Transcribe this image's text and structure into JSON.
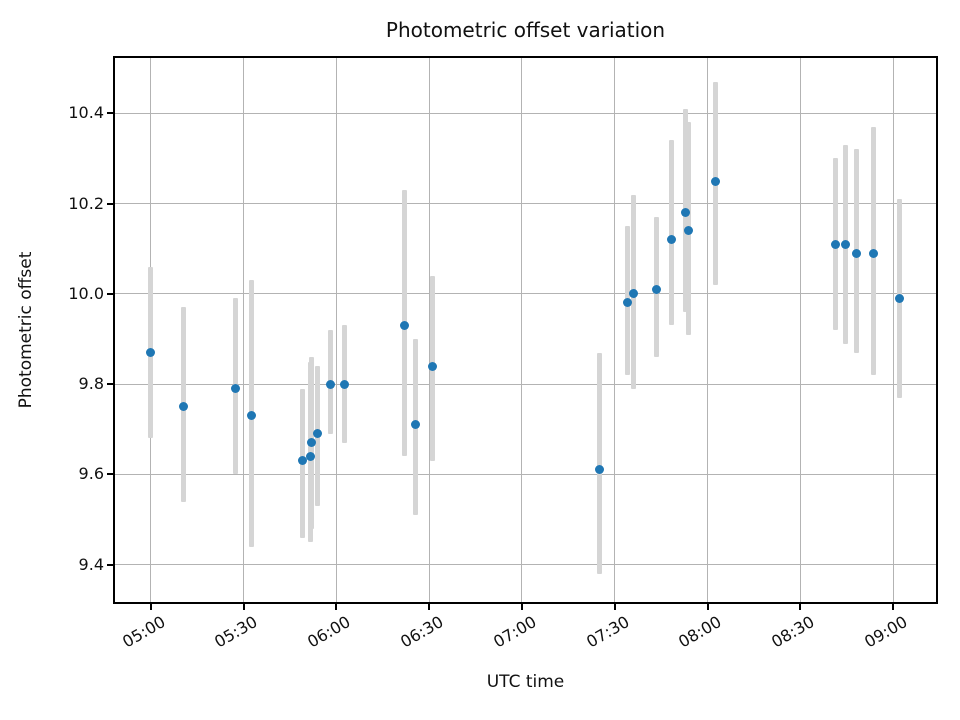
{
  "figure": {
    "title": "Photometric offset variation",
    "xlabel": "UTC time",
    "ylabel": "Photometric offset"
  },
  "colors": {
    "marker": "#1f77b4",
    "error_bar": "#d5d5d5",
    "grid": "#b3b3b3",
    "axis": "#000000",
    "background": "#ffffff"
  },
  "chart_data": {
    "type": "scatter",
    "title": "Photometric offset variation",
    "xlabel": "UTC time",
    "ylabel": "Photometric offset",
    "grid": true,
    "legend": false,
    "x_unit": "minutes after 05:00 UTC",
    "x_tick_labels": [
      "05:00",
      "05:30",
      "06:00",
      "06:30",
      "07:00",
      "07:30",
      "08:00",
      "08:30",
      "09:00"
    ],
    "x_tick_minutes": [
      0,
      30,
      60,
      90,
      120,
      150,
      180,
      210,
      240
    ],
    "y_tick_labels": [
      "9.4",
      "9.6",
      "9.8",
      "10.0",
      "10.2",
      "10.4"
    ],
    "y_ticks": [
      9.4,
      9.6,
      9.8,
      10.0,
      10.2,
      10.4
    ],
    "xlim_minutes": [
      -12.2,
      254.5
    ],
    "ylim": [
      9.313,
      10.527
    ],
    "series": [
      {
        "name": "photometric offset with error bars",
        "points": [
          {
            "utc": "05:00",
            "x_min": 0,
            "y": 9.87,
            "y_lo": 9.68,
            "y_hi": 10.06
          },
          {
            "utc": "05:10",
            "x_min": 10.5,
            "y": 9.75,
            "y_lo": 9.54,
            "y_hi": 9.97
          },
          {
            "utc": "05:28",
            "x_min": 27.5,
            "y": 9.79,
            "y_lo": 9.6,
            "y_hi": 9.99
          },
          {
            "utc": "05:32",
            "x_min": 32.5,
            "y": 9.73,
            "y_lo": 9.44,
            "y_hi": 10.03
          },
          {
            "utc": "05:49",
            "x_min": 49,
            "y": 9.63,
            "y_lo": 9.46,
            "y_hi": 9.79
          },
          {
            "utc": "05:51",
            "x_min": 51.5,
            "y": 9.64,
            "y_lo": 9.45,
            "y_hi": 9.85
          },
          {
            "utc": "05:52",
            "x_min": 52,
            "y": 9.67,
            "y_lo": 9.48,
            "y_hi": 9.86
          },
          {
            "utc": "05:54",
            "x_min": 54,
            "y": 9.69,
            "y_lo": 9.53,
            "y_hi": 9.84
          },
          {
            "utc": "05:58",
            "x_min": 58,
            "y": 9.8,
            "y_lo": 9.69,
            "y_hi": 9.92
          },
          {
            "utc": "06:02",
            "x_min": 62.5,
            "y": 9.8,
            "y_lo": 9.67,
            "y_hi": 9.93
          },
          {
            "utc": "06:22",
            "x_min": 82,
            "y": 9.93,
            "y_lo": 9.64,
            "y_hi": 10.23
          },
          {
            "utc": "06:26",
            "x_min": 85.5,
            "y": 9.71,
            "y_lo": 9.51,
            "y_hi": 9.9
          },
          {
            "utc": "06:31",
            "x_min": 91,
            "y": 9.84,
            "y_lo": 9.63,
            "y_hi": 10.04
          },
          {
            "utc": "07:25",
            "x_min": 145,
            "y": 9.61,
            "y_lo": 9.38,
            "y_hi": 9.87
          },
          {
            "utc": "07:34",
            "x_min": 154,
            "y": 9.98,
            "y_lo": 9.82,
            "y_hi": 10.15
          },
          {
            "utc": "07:36",
            "x_min": 156,
            "y": 10.0,
            "y_lo": 9.79,
            "y_hi": 10.22
          },
          {
            "utc": "07:43",
            "x_min": 163.5,
            "y": 10.01,
            "y_lo": 9.86,
            "y_hi": 10.17
          },
          {
            "utc": "07:48",
            "x_min": 168.5,
            "y": 10.12,
            "y_lo": 9.93,
            "y_hi": 10.34
          },
          {
            "utc": "07:53",
            "x_min": 173,
            "y": 10.18,
            "y_lo": 9.96,
            "y_hi": 10.41
          },
          {
            "utc": "07:54",
            "x_min": 174,
            "y": 10.14,
            "y_lo": 9.91,
            "y_hi": 10.38
          },
          {
            "utc": "08:03",
            "x_min": 182.5,
            "y": 10.25,
            "y_lo": 10.02,
            "y_hi": 10.47
          },
          {
            "utc": "08:42",
            "x_min": 221.5,
            "y": 10.11,
            "y_lo": 9.92,
            "y_hi": 10.3
          },
          {
            "utc": "08:44",
            "x_min": 224.5,
            "y": 10.11,
            "y_lo": 9.89,
            "y_hi": 10.33
          },
          {
            "utc": "08:48",
            "x_min": 228,
            "y": 10.09,
            "y_lo": 9.87,
            "y_hi": 10.32
          },
          {
            "utc": "08:53",
            "x_min": 233.5,
            "y": 10.09,
            "y_lo": 9.82,
            "y_hi": 10.37
          },
          {
            "utc": "09:02",
            "x_min": 242,
            "y": 9.99,
            "y_lo": 9.77,
            "y_hi": 10.21
          }
        ]
      }
    ]
  }
}
